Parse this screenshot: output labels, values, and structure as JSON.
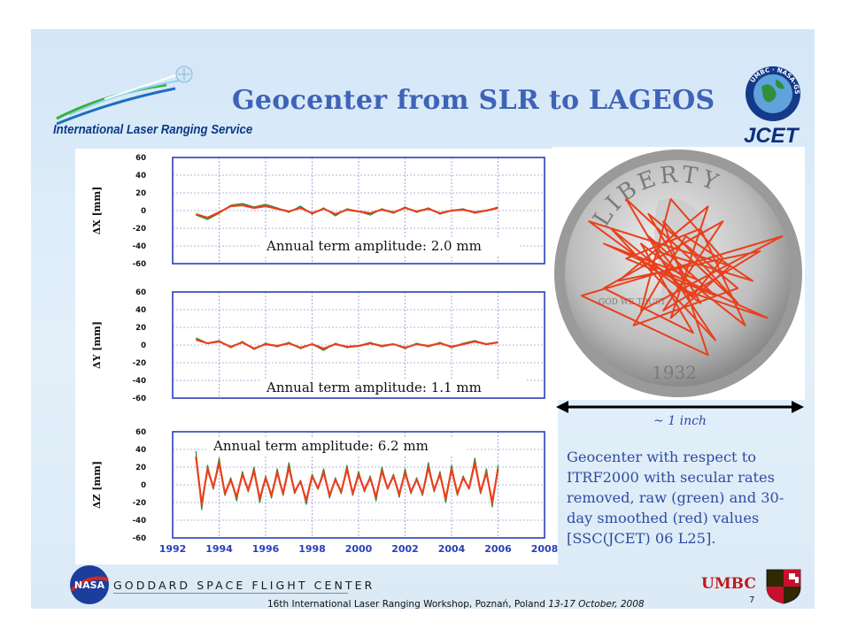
{
  "slide": {
    "title": "Geocenter from SLR to LAGEOS",
    "ilrs_name": "International Laser Ranging Service",
    "jcet_name": "JCET",
    "jcet_seal_text": "UMBC · NASA-GSFC",
    "inch_label": "~ 1 inch",
    "caption": "Geocenter with respect to ITRF2000 with secular rates removed, raw (green) and 30-day smoothed (red) values [SSC(JCET) 06 L25].",
    "coin_text_top": "LIBERTY",
    "coin_text_motto": "GOD WE TRUST",
    "coin_year": "1932"
  },
  "footer": {
    "nasa_label": "NASA",
    "gsfc_label": "GODDARD SPACE FLIGHT CENTER",
    "workshop_text": "16th International Laser Ranging Workshop, Poznań, Poland ",
    "workshop_dates": "13-17 October, 2008",
    "umbc_label": "UMBC",
    "page_number": "7"
  },
  "colors": {
    "title": "#3f63b7",
    "raw_series": "#2e8b3a",
    "smoothed_series": "#e8401c",
    "plot_frame": "#2a3fb8",
    "caption": "#2f4ba3"
  },
  "chart_data": [
    {
      "type": "line",
      "ylabel": "ΔX [mm]",
      "ylim": [
        -60,
        60
      ],
      "yticks": [
        60,
        40,
        20,
        0,
        -20,
        -40,
        -60
      ],
      "xlim": [
        1992,
        2008
      ],
      "grid": true,
      "annotation": "Annual term amplitude: 2.0 mm",
      "series": [
        {
          "name": "raw",
          "color": "#2e8b3a",
          "x": [
            1993.0,
            1993.5,
            1994.0,
            1994.5,
            1995.0,
            1995.5,
            1996.0,
            1996.5,
            1997.0,
            1997.5,
            1998.0,
            1998.5,
            1999.0,
            1999.5,
            2000.0,
            2000.5,
            2001.0,
            2001.5,
            2002.0,
            2002.5,
            2003.0,
            2003.5,
            2004.0,
            2004.5,
            2005.0,
            2005.5,
            2006.0
          ],
          "y": [
            -5,
            -10,
            -3,
            6,
            8,
            4,
            7,
            3,
            -2,
            5,
            -4,
            3,
            -6,
            2,
            -1,
            -5,
            2,
            -3,
            4,
            -2,
            3,
            -4,
            0,
            2,
            -3,
            0,
            4
          ]
        },
        {
          "name": "30-day smoothed",
          "color": "#e8401c",
          "x": [
            1993.0,
            1993.5,
            1994.0,
            1994.5,
            1995.0,
            1995.5,
            1996.0,
            1996.5,
            1997.0,
            1997.5,
            1998.0,
            1998.5,
            1999.0,
            1999.5,
            2000.0,
            2000.5,
            2001.0,
            2001.5,
            2002.0,
            2002.5,
            2003.0,
            2003.5,
            2004.0,
            2004.5,
            2005.0,
            2005.5,
            2006.0
          ],
          "y": [
            -4,
            -8,
            -2,
            5,
            6,
            3,
            5,
            2,
            -1,
            3,
            -3,
            2,
            -4,
            1,
            -1,
            -3,
            1,
            -2,
            3,
            -1,
            2,
            -3,
            0,
            1,
            -2,
            0,
            3
          ]
        }
      ]
    },
    {
      "type": "line",
      "ylabel": "ΔY [mm]",
      "ylim": [
        -60,
        60
      ],
      "yticks": [
        60,
        40,
        20,
        0,
        -20,
        -40,
        -60
      ],
      "xlim": [
        1992,
        2008
      ],
      "grid": true,
      "annotation": "Annual term amplitude: 1.1 mm",
      "series": [
        {
          "name": "raw",
          "color": "#2e8b3a",
          "x": [
            1993.0,
            1993.5,
            1994.0,
            1994.5,
            1995.0,
            1995.5,
            1996.0,
            1996.5,
            1997.0,
            1997.5,
            1998.0,
            1998.5,
            1999.0,
            1999.5,
            2000.0,
            2000.5,
            2001.0,
            2001.5,
            2002.0,
            2002.5,
            2003.0,
            2003.5,
            2004.0,
            2004.5,
            2005.0,
            2005.5,
            2006.0
          ],
          "y": [
            8,
            2,
            5,
            -3,
            4,
            -5,
            2,
            -2,
            3,
            -4,
            1,
            -6,
            2,
            -3,
            -1,
            3,
            -2,
            1,
            -4,
            2,
            -2,
            3,
            -3,
            2,
            5,
            1,
            3
          ]
        },
        {
          "name": "30-day smoothed",
          "color": "#e8401c",
          "x": [
            1993.0,
            1993.5,
            1994.0,
            1994.5,
            1995.0,
            1995.5,
            1996.0,
            1996.5,
            1997.0,
            1997.5,
            1998.0,
            1998.5,
            1999.0,
            1999.5,
            2000.0,
            2000.5,
            2001.0,
            2001.5,
            2002.0,
            2002.5,
            2003.0,
            2003.5,
            2004.0,
            2004.5,
            2005.0,
            2005.5,
            2006.0
          ],
          "y": [
            6,
            2,
            4,
            -2,
            3,
            -4,
            1,
            -1,
            2,
            -3,
            1,
            -4,
            1,
            -2,
            -1,
            2,
            -1,
            1,
            -3,
            1,
            -1,
            2,
            -2,
            1,
            4,
            1,
            3
          ]
        }
      ]
    },
    {
      "type": "line",
      "ylabel": "ΔZ [mm]",
      "ylim": [
        -60,
        60
      ],
      "yticks": [
        60,
        40,
        20,
        0,
        -20,
        -40,
        -60
      ],
      "xlim": [
        1992,
        2008
      ],
      "xticks": [
        1992,
        1994,
        1996,
        1998,
        2000,
        2002,
        2004,
        2006,
        2008
      ],
      "grid": true,
      "annotation": "Annual term amplitude: 6.2 mm",
      "series": [
        {
          "name": "raw",
          "color": "#2e8b3a",
          "x": [
            1993.0,
            1993.25,
            1993.5,
            1993.75,
            1994.0,
            1994.25,
            1994.5,
            1994.75,
            1995.0,
            1995.25,
            1995.5,
            1995.75,
            1996.0,
            1996.25,
            1996.5,
            1996.75,
            1997.0,
            1997.25,
            1997.5,
            1997.75,
            1998.0,
            1998.25,
            1998.5,
            1998.75,
            1999.0,
            1999.25,
            1999.5,
            1999.75,
            2000.0,
            2000.25,
            2000.5,
            2000.75,
            2001.0,
            2001.25,
            2001.5,
            2001.75,
            2002.0,
            2002.25,
            2002.5,
            2002.75,
            2003.0,
            2003.25,
            2003.5,
            2003.75,
            2004.0,
            2004.25,
            2004.5,
            2004.75,
            2005.0,
            2005.25,
            2005.5,
            2005.75,
            2006.0
          ],
          "y": [
            38,
            -28,
            22,
            -5,
            30,
            -12,
            8,
            -18,
            15,
            -8,
            20,
            -20,
            10,
            -15,
            18,
            -12,
            25,
            -10,
            5,
            -22,
            12,
            -5,
            18,
            -15,
            8,
            -10,
            22,
            -12,
            15,
            -8,
            10,
            -18,
            20,
            -5,
            12,
            -14,
            18,
            -10,
            8,
            -12,
            25,
            -8,
            15,
            -20,
            22,
            -12,
            10,
            -5,
            30,
            -10,
            18,
            -25,
            22
          ]
        },
        {
          "name": "30-day smoothed",
          "color": "#e8401c",
          "x": [
            1993.0,
            1993.25,
            1993.5,
            1993.75,
            1994.0,
            1994.25,
            1994.5,
            1994.75,
            1995.0,
            1995.25,
            1995.5,
            1995.75,
            1996.0,
            1996.25,
            1996.5,
            1996.75,
            1997.0,
            1997.25,
            1997.5,
            1997.75,
            1998.0,
            1998.25,
            1998.5,
            1998.75,
            1999.0,
            1999.25,
            1999.5,
            1999.75,
            2000.0,
            2000.25,
            2000.5,
            2000.75,
            2001.0,
            2001.25,
            2001.5,
            2001.75,
            2002.0,
            2002.25,
            2002.5,
            2002.75,
            2003.0,
            2003.25,
            2003.5,
            2003.75,
            2004.0,
            2004.25,
            2004.5,
            2004.75,
            2005.0,
            2005.25,
            2005.5,
            2005.75,
            2006.0
          ],
          "y": [
            32,
            -22,
            18,
            -3,
            25,
            -10,
            6,
            -14,
            12,
            -6,
            16,
            -16,
            8,
            -12,
            14,
            -10,
            20,
            -8,
            4,
            -18,
            10,
            -4,
            14,
            -12,
            6,
            -8,
            18,
            -10,
            12,
            -6,
            8,
            -14,
            16,
            -4,
            10,
            -11,
            14,
            -8,
            6,
            -10,
            20,
            -6,
            12,
            -16,
            18,
            -10,
            8,
            -4,
            25,
            -8,
            14,
            -20,
            18
          ]
        }
      ]
    },
    {
      "type": "line",
      "title": "~ 1 inch",
      "grid": false,
      "series": [
        {
          "name": "geocenter trajectory",
          "color": "#e8401c",
          "x": [
            0,
            -8,
            10,
            -14,
            6,
            18,
            -10,
            4,
            -20,
            12,
            -4,
            22,
            -16,
            8,
            -2,
            14,
            -24,
            6,
            -8,
            16,
            -12,
            2,
            20,
            -6,
            10,
            -18,
            4,
            12,
            -2,
            -10,
            28,
            -26,
            8,
            -4,
            16,
            -14,
            0,
            24,
            -20,
            6
          ],
          "y": [
            0,
            10,
            -6,
            4,
            12,
            -14,
            8,
            -16,
            -4,
            14,
            -10,
            6,
            -2,
            18,
            -12,
            2,
            14,
            -8,
            16,
            -4,
            -14,
            10,
            -2,
            6,
            -18,
            12,
            -6,
            4,
            20,
            -10,
            10,
            -6,
            -22,
            14,
            -8,
            20,
            -4,
            -12,
            8,
            -2
          ]
        }
      ]
    }
  ]
}
